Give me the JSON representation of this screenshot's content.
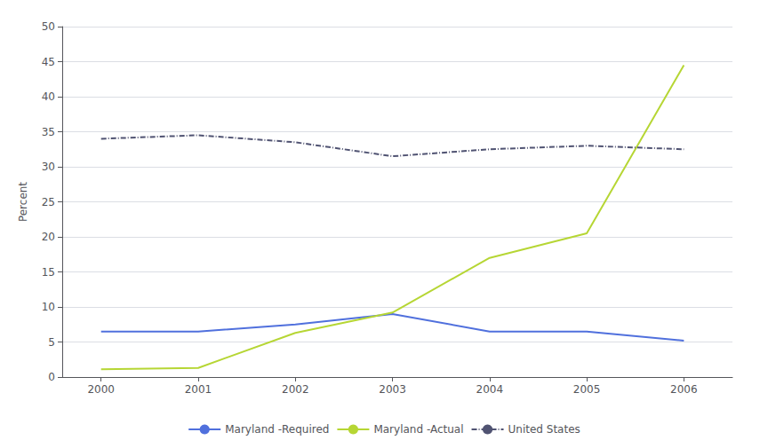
{
  "chart_data": {
    "type": "line",
    "x": [
      2000,
      2001,
      2002,
      2003,
      2004,
      2005,
      2006
    ],
    "series": [
      {
        "name": "Maryland -Required",
        "values": [
          6.5,
          6.5,
          7.5,
          9.0,
          6.5,
          6.5,
          5.2
        ],
        "line_style": "solid"
      },
      {
        "name": "Maryland -Actual",
        "values": [
          1.1,
          1.3,
          6.3,
          9.2,
          17.0,
          20.5,
          44.5
        ],
        "line_style": "solid"
      },
      {
        "name": "United States",
        "values": [
          34.0,
          34.5,
          33.5,
          31.5,
          32.5,
          33.0,
          32.5
        ],
        "line_style": "dashdot"
      }
    ],
    "ylabel": "Percent",
    "xlim": [
      1999.6,
      2006.5
    ],
    "xticks": [
      2000,
      2001,
      2002,
      2003,
      2004,
      2005,
      2006
    ],
    "ylim": [
      0,
      50
    ],
    "yticks": [
      0,
      5,
      10,
      15,
      20,
      25,
      30,
      35,
      40,
      45,
      50
    ],
    "grid": true,
    "legend": "bottom"
  }
}
